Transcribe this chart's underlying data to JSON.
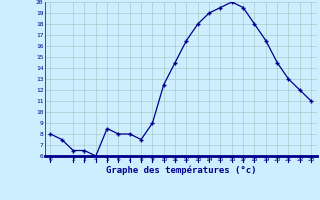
{
  "hours": [
    0,
    1,
    2,
    3,
    4,
    5,
    6,
    7,
    8,
    9,
    10,
    11,
    12,
    13,
    14,
    15,
    16,
    17,
    18,
    19,
    20,
    21,
    22,
    23
  ],
  "temps": [
    8,
    7.5,
    6.5,
    6.5,
    6,
    8.5,
    8,
    8,
    7.5,
    9,
    12.5,
    14.5,
    16.5,
    18,
    19,
    19.5,
    20,
    19.5,
    18,
    16.5,
    14.5,
    13,
    12,
    11
  ],
  "line_color": "#00008b",
  "marker": "+",
  "bg_color": "#cceeff",
  "grid_color": "#aacccc",
  "xlabel": "Graphe des températures (°c)",
  "xlabel_color": "#00008b",
  "tick_color": "#00008b",
  "ylim": [
    6,
    20
  ],
  "xlim": [
    -0.5,
    23.5
  ],
  "yticks": [
    6,
    7,
    8,
    9,
    10,
    11,
    12,
    13,
    14,
    15,
    16,
    17,
    18,
    19,
    20
  ],
  "xticks": [
    0,
    2,
    3,
    4,
    5,
    6,
    7,
    8,
    9,
    10,
    11,
    12,
    13,
    14,
    15,
    16,
    17,
    18,
    19,
    20,
    21,
    22,
    23
  ]
}
